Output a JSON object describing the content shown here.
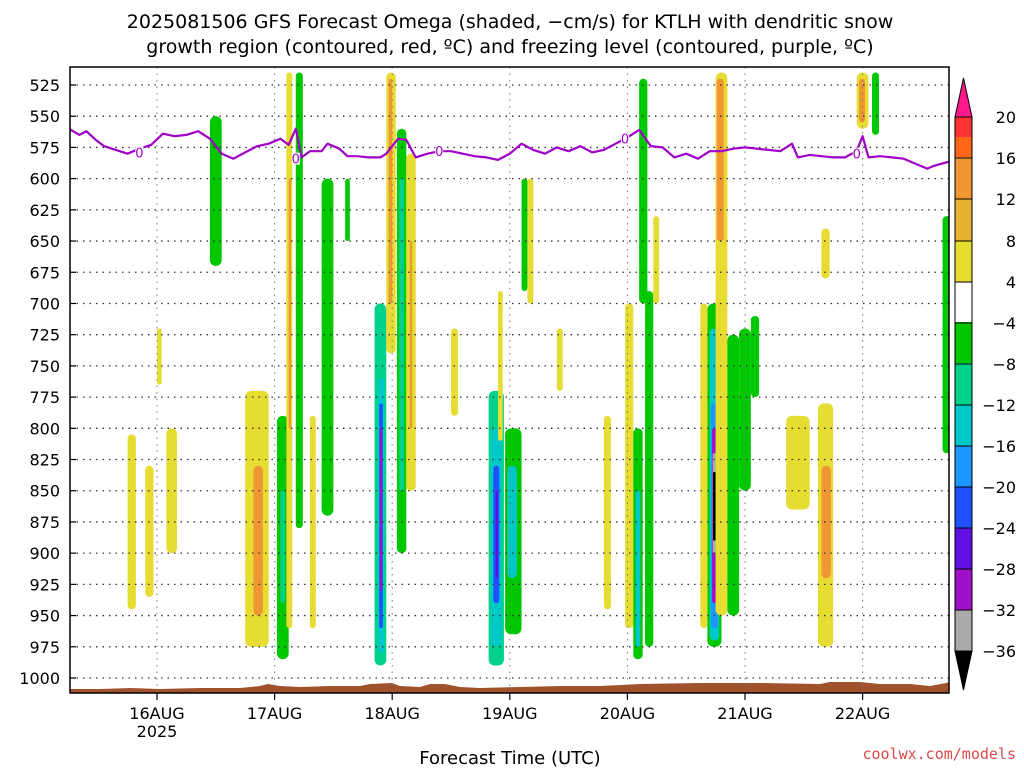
{
  "chart_data": {
    "type": "heatmap",
    "title_line1": "2025081506 GFS Forecast Omega (shaded, −cm/s) for KTLH with dendritic snow",
    "title_line2": "growth region (contoured, red, ºC) and freezing level (contoured, purple, ºC)",
    "xlabel": "Forecast Time (UTC)",
    "credit": "coolwx.com/models",
    "y_ticks": [
      525,
      550,
      575,
      600,
      625,
      650,
      675,
      700,
      725,
      750,
      775,
      800,
      825,
      850,
      875,
      900,
      925,
      950,
      975,
      1000
    ],
    "y_reverse": true,
    "x_ticks": [
      {
        "t": 0,
        "label": "16AUG",
        "sub": "2025"
      },
      {
        "t": 1,
        "label": "17AUG",
        "sub": ""
      },
      {
        "t": 2,
        "label": "18AUG",
        "sub": ""
      },
      {
        "t": 3,
        "label": "19AUG",
        "sub": ""
      },
      {
        "t": 4,
        "label": "20AUG",
        "sub": ""
      },
      {
        "t": 5,
        "label": "21AUG",
        "sub": ""
      },
      {
        "t": 6,
        "label": "22AUG",
        "sub": ""
      }
    ],
    "x_range": [
      -0.75,
      6.75
    ],
    "grid": true,
    "colorbar": {
      "labels": [
        "20",
        "16",
        "12",
        "8",
        "4",
        "−4",
        "−8",
        "−12",
        "−16",
        "−20",
        "−24",
        "−28",
        "−32",
        "−36"
      ],
      "colors": [
        "#ff1a8c",
        "#ff3333",
        "#ff6619",
        "#f09632",
        "#e6b432",
        "#e6dc32",
        "#ffffff",
        "#00c800",
        "#00d28c",
        "#00c8c8",
        "#1e96ff",
        "#2050ff",
        "#6010e0",
        "#a010c8",
        "#aaaaaa",
        "#000000"
      ]
    },
    "freezing_level": {
      "name": "freezing level (0 ºC)",
      "color": "#a000c8",
      "points": [
        [
          -0.75,
          560
        ],
        [
          -0.66,
          565
        ],
        [
          -0.6,
          562
        ],
        [
          -0.52,
          569
        ],
        [
          -0.45,
          574
        ],
        [
          -0.35,
          577
        ],
        [
          -0.25,
          580
        ],
        [
          -0.15,
          576
        ],
        [
          -0.05,
          573
        ],
        [
          0.05,
          564
        ],
        [
          0.15,
          566
        ],
        [
          0.25,
          565
        ],
        [
          0.35,
          562
        ],
        [
          0.45,
          568
        ],
        [
          0.55,
          580
        ],
        [
          0.65,
          584
        ],
        [
          0.75,
          579
        ],
        [
          0.85,
          574
        ],
        [
          0.95,
          572
        ],
        [
          1.05,
          568
        ],
        [
          1.12,
          573
        ],
        [
          1.18,
          560
        ],
        [
          1.23,
          583
        ],
        [
          1.3,
          578
        ],
        [
          1.4,
          578
        ],
        [
          1.45,
          572
        ],
        [
          1.55,
          576
        ],
        [
          1.62,
          582
        ],
        [
          1.7,
          582
        ],
        [
          1.8,
          583
        ],
        [
          1.9,
          583
        ],
        [
          1.95,
          580
        ],
        [
          2.05,
          568
        ],
        [
          2.12,
          569
        ],
        [
          2.2,
          583
        ],
        [
          2.3,
          580
        ],
        [
          2.4,
          578
        ],
        [
          2.5,
          578
        ],
        [
          2.6,
          580
        ],
        [
          2.7,
          582
        ],
        [
          2.8,
          583
        ],
        [
          2.9,
          585
        ],
        [
          3.0,
          580
        ],
        [
          3.1,
          572
        ],
        [
          3.2,
          577
        ],
        [
          3.3,
          580
        ],
        [
          3.4,
          575
        ],
        [
          3.5,
          578
        ],
        [
          3.6,
          574
        ],
        [
          3.7,
          579
        ],
        [
          3.8,
          577
        ],
        [
          3.9,
          572
        ],
        [
          4.0,
          567
        ],
        [
          4.1,
          561
        ],
        [
          4.2,
          574
        ],
        [
          4.3,
          575
        ],
        [
          4.4,
          583
        ],
        [
          4.5,
          580
        ],
        [
          4.6,
          584
        ],
        [
          4.7,
          578
        ],
        [
          4.8,
          578
        ],
        [
          4.9,
          576
        ],
        [
          5.0,
          575
        ],
        [
          5.1,
          576
        ],
        [
          5.2,
          577
        ],
        [
          5.3,
          578
        ],
        [
          5.4,
          572
        ],
        [
          5.45,
          583
        ],
        [
          5.55,
          581
        ],
        [
          5.65,
          582
        ],
        [
          5.75,
          583
        ],
        [
          5.85,
          583
        ],
        [
          5.95,
          578
        ],
        [
          6.0,
          566
        ],
        [
          6.05,
          583
        ],
        [
          6.15,
          582
        ],
        [
          6.25,
          583
        ],
        [
          6.35,
          584
        ],
        [
          6.45,
          588
        ],
        [
          6.55,
          592
        ],
        [
          6.6,
          590
        ],
        [
          6.75,
          586
        ]
      ],
      "labels": [
        {
          "t": -0.15,
          "p": 579,
          "text": "0"
        },
        {
          "t": 1.18,
          "p": 584,
          "text": "0"
        },
        {
          "t": 2.4,
          "p": 578,
          "text": "0"
        },
        {
          "t": 3.98,
          "p": 568,
          "text": "0"
        },
        {
          "t": 5.95,
          "p": 580,
          "text": "0"
        }
      ]
    },
    "omega_shading": [
      {
        "t0": -0.25,
        "t1": -0.18,
        "p0": 805,
        "p1": 945,
        "value": 6
      },
      {
        "t0": -0.1,
        "t1": -0.03,
        "p0": 830,
        "p1": 935,
        "value": 6
      },
      {
        "t0": 0.08,
        "t1": 0.17,
        "p0": 800,
        "p1": 900,
        "value": 5
      },
      {
        "t0": 0.0,
        "t1": 0.04,
        "p0": 720,
        "p1": 765,
        "value": 5
      },
      {
        "t0": 0.45,
        "t1": 0.55,
        "p0": 550,
        "p1": 670,
        "value": -6
      },
      {
        "t0": 0.75,
        "t1": 0.95,
        "p0": 770,
        "p1": 975,
        "value": 6
      },
      {
        "t0": 0.82,
        "t1": 0.9,
        "p0": 830,
        "p1": 950,
        "value": 10
      },
      {
        "t0": 1.02,
        "t1": 1.12,
        "p0": 790,
        "p1": 985,
        "value": -7
      },
      {
        "t0": 1.05,
        "t1": 1.09,
        "p0": 850,
        "p1": 940,
        "value": -10
      },
      {
        "t0": 1.1,
        "t1": 1.15,
        "p0": 515,
        "p1": 960,
        "value": 6
      },
      {
        "t0": 1.12,
        "t1": 1.14,
        "p0": 600,
        "p1": 800,
        "value": 10
      },
      {
        "t0": 1.18,
        "t1": 1.24,
        "p0": 515,
        "p1": 880,
        "value": -6
      },
      {
        "t0": 1.3,
        "t1": 1.35,
        "p0": 790,
        "p1": 960,
        "value": 5
      },
      {
        "t0": 1.4,
        "t1": 1.5,
        "p0": 600,
        "p1": 870,
        "value": -6
      },
      {
        "t0": 1.6,
        "t1": 1.64,
        "p0": 600,
        "p1": 650,
        "value": -5
      },
      {
        "t0": 1.85,
        "t1": 1.95,
        "p0": 700,
        "p1": 990,
        "value": -8
      },
      {
        "t0": 1.88,
        "t1": 1.93,
        "p0": 760,
        "p1": 980,
        "value": -14
      },
      {
        "t0": 1.89,
        "t1": 1.92,
        "p0": 780,
        "p1": 960,
        "value": -20
      },
      {
        "t0": 1.895,
        "t1": 1.915,
        "p0": 800,
        "p1": 930,
        "value": -28
      },
      {
        "t0": 1.95,
        "t1": 2.03,
        "p0": 515,
        "p1": 740,
        "value": 5
      },
      {
        "t0": 1.97,
        "t1": 2.0,
        "p0": 520,
        "p1": 700,
        "value": 9
      },
      {
        "t0": 2.04,
        "t1": 2.12,
        "p0": 560,
        "p1": 900,
        "value": -7
      },
      {
        "t0": 2.06,
        "t1": 2.1,
        "p0": 600,
        "p1": 850,
        "value": -10
      },
      {
        "t0": 2.12,
        "t1": 2.2,
        "p0": 580,
        "p1": 850,
        "value": 6
      },
      {
        "t0": 2.15,
        "t1": 2.17,
        "p0": 650,
        "p1": 800,
        "value": 10
      },
      {
        "t0": 2.5,
        "t1": 2.56,
        "p0": 720,
        "p1": 790,
        "value": 5
      },
      {
        "t0": 2.82,
        "t1": 2.95,
        "p0": 770,
        "p1": 990,
        "value": -8
      },
      {
        "t0": 2.84,
        "t1": 2.93,
        "p0": 800,
        "p1": 975,
        "value": -14
      },
      {
        "t0": 2.86,
        "t1": 2.91,
        "p0": 830,
        "p1": 940,
        "value": -20
      },
      {
        "t0": 2.88,
        "t1": 2.9,
        "p0": 850,
        "p1": 920,
        "value": -24
      },
      {
        "t0": 2.9,
        "t1": 2.94,
        "p0": 690,
        "p1": 810,
        "value": 5
      },
      {
        "t0": 2.96,
        "t1": 3.1,
        "p0": 800,
        "p1": 965,
        "value": -7
      },
      {
        "t0": 2.98,
        "t1": 3.06,
        "p0": 830,
        "p1": 920,
        "value": -12
      },
      {
        "t0": 3.1,
        "t1": 3.15,
        "p0": 600,
        "p1": 690,
        "value": -5
      },
      {
        "t0": 3.15,
        "t1": 3.2,
        "p0": 600,
        "p1": 700,
        "value": 5
      },
      {
        "t0": 3.4,
        "t1": 3.45,
        "p0": 720,
        "p1": 770,
        "value": 5
      },
      {
        "t0": 3.8,
        "t1": 3.86,
        "p0": 790,
        "p1": 945,
        "value": 5
      },
      {
        "t0": 3.98,
        "t1": 4.05,
        "p0": 700,
        "p1": 960,
        "value": 5
      },
      {
        "t0": 4.05,
        "t1": 4.13,
        "p0": 800,
        "p1": 985,
        "value": -7
      },
      {
        "t0": 4.07,
        "t1": 4.11,
        "p0": 850,
        "p1": 975,
        "value": -12
      },
      {
        "t0": 4.1,
        "t1": 4.17,
        "p0": 520,
        "p1": 700,
        "value": -6
      },
      {
        "t0": 4.15,
        "t1": 4.22,
        "p0": 690,
        "p1": 975,
        "value": -6
      },
      {
        "t0": 4.22,
        "t1": 4.27,
        "p0": 630,
        "p1": 700,
        "value": 5
      },
      {
        "t0": 4.68,
        "t1": 4.8,
        "p0": 700,
        "p1": 975,
        "value": -7
      },
      {
        "t0": 4.7,
        "t1": 4.78,
        "p0": 720,
        "p1": 970,
        "value": -12
      },
      {
        "t0": 4.71,
        "t1": 4.77,
        "p0": 780,
        "p1": 960,
        "value": -18
      },
      {
        "t0": 4.72,
        "t1": 4.76,
        "p0": 800,
        "p1": 940,
        "value": -28
      },
      {
        "t0": 4.725,
        "t1": 4.755,
        "p0": 820,
        "p1": 900,
        "value": -32
      },
      {
        "t0": 4.728,
        "t1": 4.752,
        "p0": 835,
        "p1": 890,
        "value": -38
      },
      {
        "t0": 4.62,
        "t1": 4.68,
        "p0": 700,
        "p1": 960,
        "value": 5
      },
      {
        "t0": 4.75,
        "t1": 4.85,
        "p0": 515,
        "p1": 950,
        "value": 5
      },
      {
        "t0": 4.76,
        "t1": 4.82,
        "p0": 520,
        "p1": 650,
        "value": 10
      },
      {
        "t0": 4.85,
        "t1": 4.95,
        "p0": 725,
        "p1": 950,
        "value": -6
      },
      {
        "t0": 4.95,
        "t1": 5.05,
        "p0": 720,
        "p1": 850,
        "value": -6
      },
      {
        "t0": 5.05,
        "t1": 5.12,
        "p0": 710,
        "p1": 775,
        "value": -6
      },
      {
        "t0": 5.35,
        "t1": 5.55,
        "p0": 790,
        "p1": 865,
        "value": 5
      },
      {
        "t0": 5.62,
        "t1": 5.75,
        "p0": 780,
        "p1": 975,
        "value": 5
      },
      {
        "t0": 5.65,
        "t1": 5.73,
        "p0": 830,
        "p1": 920,
        "value": 10
      },
      {
        "t0": 5.95,
        "t1": 6.05,
        "p0": 515,
        "p1": 560,
        "value": 6
      },
      {
        "t0": 5.97,
        "t1": 6.02,
        "p0": 520,
        "p1": 555,
        "value": 10
      },
      {
        "t0": 6.08,
        "t1": 6.14,
        "p0": 515,
        "p1": 565,
        "value": -6
      },
      {
        "t0": 5.65,
        "t1": 5.72,
        "p0": 640,
        "p1": 680,
        "value": 5
      },
      {
        "t0": 6.68,
        "t1": 6.75,
        "p0": 630,
        "p1": 820,
        "value": -6
      }
    ]
  }
}
